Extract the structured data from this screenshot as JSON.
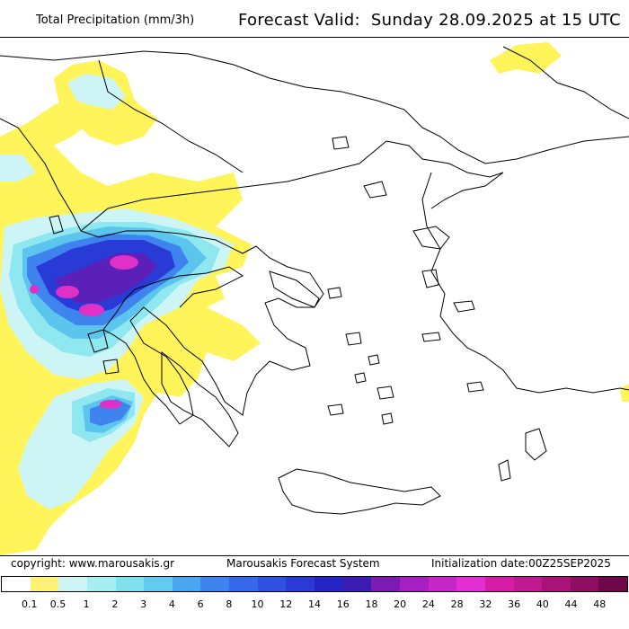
{
  "header": {
    "title": "Total Precipitation (mm/3h)",
    "forecast_valid_label": "Forecast Valid:",
    "forecast_valid_value": "Sunday 28.09.2025 at 15 UTC"
  },
  "footer": {
    "copyright": "copyright: www.marousakis.gr",
    "system": "Marousakis Forecast System",
    "initialization": "Initialization date:00Z25SEP2025"
  },
  "legend": {
    "ticks": [
      "0.1",
      "0.5",
      "1",
      "2",
      "3",
      "4",
      "6",
      "8",
      "10",
      "12",
      "14",
      "16",
      "18",
      "20",
      "24",
      "28",
      "32",
      "36",
      "40",
      "44",
      "48"
    ],
    "colors": [
      "#ffffff",
      "#fff176",
      "#cdf5f5",
      "#a6eef2",
      "#80e1ee",
      "#62cbef",
      "#4aa6ef",
      "#3f84ee",
      "#3767ea",
      "#3050e2",
      "#2a3ad6",
      "#2424c4",
      "#3a1cb0",
      "#7a1cb4",
      "#a61fc0",
      "#c626c6",
      "#e22ed2",
      "#d61ca6",
      "#c01890",
      "#a8137a",
      "#8e0e62",
      "#6e0848"
    ]
  },
  "map": {
    "region": "Greece and the Balkans",
    "precip_colors": {
      "light": "#fff45a",
      "c1": "#cdf5f5",
      "c2": "#8fe7ef",
      "c3": "#5cc5ee",
      "c4": "#3f84ee",
      "c5": "#2a3ad6",
      "c6": "#5a20b8",
      "c7": "#e030c8"
    }
  }
}
